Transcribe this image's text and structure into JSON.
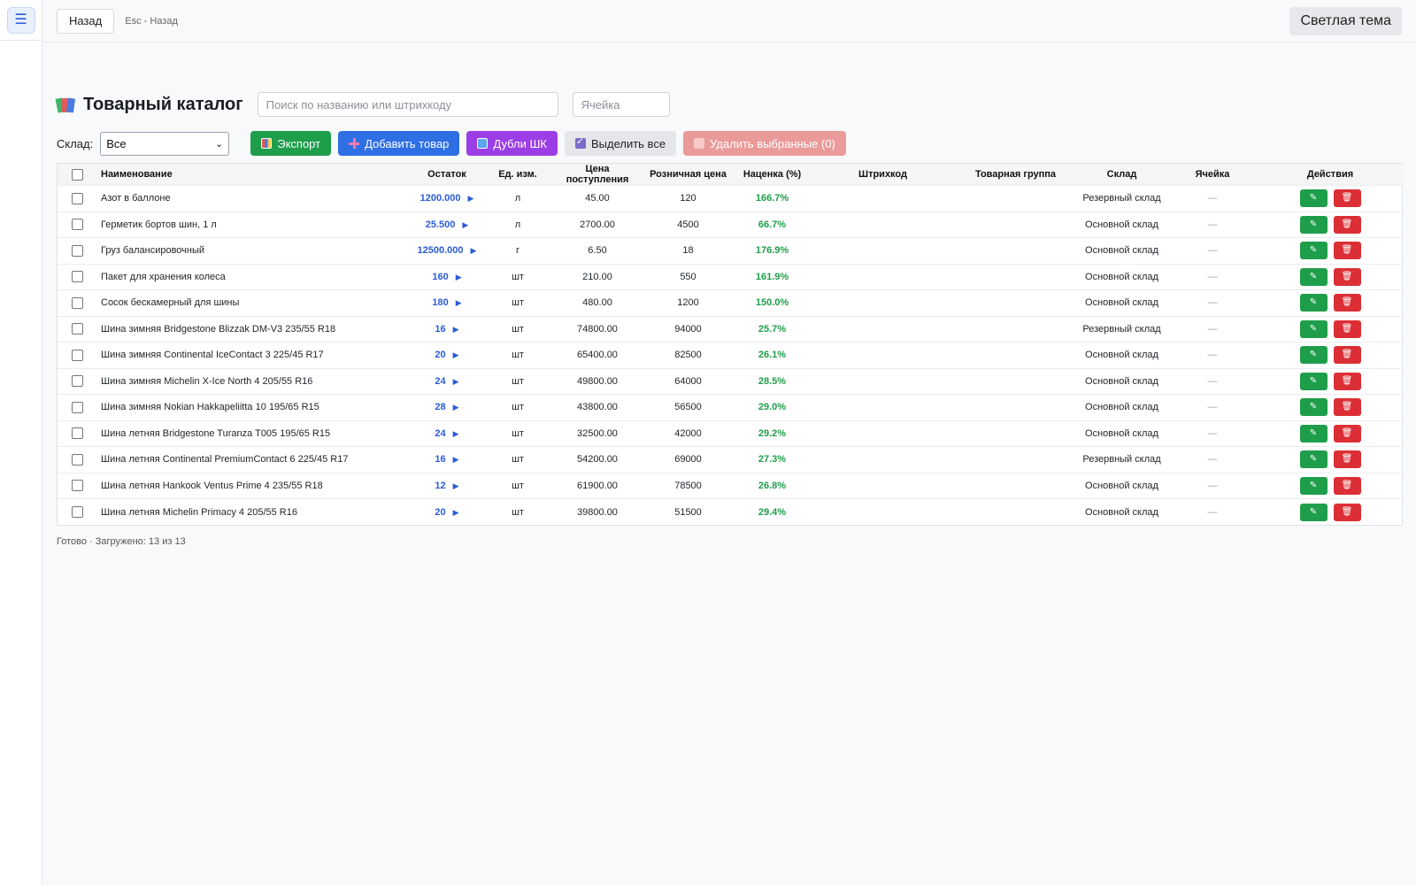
{
  "sidebar": {
    "menu_icon": "☰"
  },
  "topbar": {
    "back_label": "Назад",
    "esc_hint": "Esc - Назад",
    "theme_label": "Светлая тема"
  },
  "header": {
    "title": "Товарный каталог",
    "search_placeholder": "Поиск по названию или штрихкоду",
    "cell_placeholder": "Ячейка"
  },
  "toolbar": {
    "warehouse_label": "Склад:",
    "warehouse_value": "Все",
    "export_label": "Экспорт",
    "add_label": "Добавить товар",
    "duplicates_label": "Дубли ШК",
    "select_all_label": "Выделить все",
    "delete_selected_label": "Удалить выбранные (0)"
  },
  "table": {
    "columns": [
      "Наименование",
      "Остаток",
      "Ед. изм.",
      "Цена поступления",
      "Розничная цена",
      "Наценка (%)",
      "Штрихкод",
      "Товарная группа",
      "Склад",
      "Ячейка",
      "Действия"
    ],
    "rows": [
      {
        "name": "Азот в баллоне",
        "stock": "1200.000",
        "unit": "л",
        "cost": "45.00",
        "retail": "120",
        "markup": "166.7%",
        "barcode": "",
        "group": "",
        "warehouse": "Резервный склад",
        "cell": "—"
      },
      {
        "name": "Герметик бортов шин, 1 л",
        "stock": "25.500",
        "unit": "л",
        "cost": "2700.00",
        "retail": "4500",
        "markup": "66.7%",
        "barcode": "",
        "group": "",
        "warehouse": "Основной склад",
        "cell": "—"
      },
      {
        "name": "Груз балансировочный",
        "stock": "12500.000",
        "unit": "г",
        "cost": "6.50",
        "retail": "18",
        "markup": "176.9%",
        "barcode": "",
        "group": "",
        "warehouse": "Основной склад",
        "cell": "—"
      },
      {
        "name": "Пакет для хранения колеса",
        "stock": "160",
        "unit": "шт",
        "cost": "210.00",
        "retail": "550",
        "markup": "161.9%",
        "barcode": "",
        "group": "",
        "warehouse": "Основной склад",
        "cell": "—"
      },
      {
        "name": "Сосок бескамерный для шины",
        "stock": "180",
        "unit": "шт",
        "cost": "480.00",
        "retail": "1200",
        "markup": "150.0%",
        "barcode": "",
        "group": "",
        "warehouse": "Основной склад",
        "cell": "—"
      },
      {
        "name": "Шина зимняя Bridgestone Blizzak DM-V3 235/55 R18",
        "stock": "16",
        "unit": "шт",
        "cost": "74800.00",
        "retail": "94000",
        "markup": "25.7%",
        "barcode": "",
        "group": "",
        "warehouse": "Резервный склад",
        "cell": "—"
      },
      {
        "name": "Шина зимняя Continental IceContact 3 225/45 R17",
        "stock": "20",
        "unit": "шт",
        "cost": "65400.00",
        "retail": "82500",
        "markup": "26.1%",
        "barcode": "",
        "group": "",
        "warehouse": "Основной склад",
        "cell": "—"
      },
      {
        "name": "Шина зимняя Michelin X-Ice North 4 205/55 R16",
        "stock": "24",
        "unit": "шт",
        "cost": "49800.00",
        "retail": "64000",
        "markup": "28.5%",
        "barcode": "",
        "group": "",
        "warehouse": "Основной склад",
        "cell": "—"
      },
      {
        "name": "Шина зимняя Nokian Hakkapeliitta 10 195/65 R15",
        "stock": "28",
        "unit": "шт",
        "cost": "43800.00",
        "retail": "56500",
        "markup": "29.0%",
        "barcode": "",
        "group": "",
        "warehouse": "Основной склад",
        "cell": "—"
      },
      {
        "name": "Шина летняя Bridgestone Turanza T005 195/65 R15",
        "stock": "24",
        "unit": "шт",
        "cost": "32500.00",
        "retail": "42000",
        "markup": "29.2%",
        "barcode": "",
        "group": "",
        "warehouse": "Основной склад",
        "cell": "—"
      },
      {
        "name": "Шина летняя Continental PremiumContact 6 225/45 R17",
        "stock": "16",
        "unit": "шт",
        "cost": "54200.00",
        "retail": "69000",
        "markup": "27.3%",
        "barcode": "",
        "group": "",
        "warehouse": "Резервный склад",
        "cell": "—"
      },
      {
        "name": "Шина летняя Hankook Ventus Prime 4 235/55 R18",
        "stock": "12",
        "unit": "шт",
        "cost": "61900.00",
        "retail": "78500",
        "markup": "26.8%",
        "barcode": "",
        "group": "",
        "warehouse": "Основной склад",
        "cell": "—"
      },
      {
        "name": "Шина летняя Michelin Primacy 4 205/55 R16",
        "stock": "20",
        "unit": "шт",
        "cost": "39800.00",
        "retail": "51500",
        "markup": "29.4%",
        "barcode": "",
        "group": "",
        "warehouse": "Основной склад",
        "cell": "—"
      }
    ]
  },
  "status": "Готово · Загружено: 13 из 13",
  "colors": {
    "export": "#1e9e4a",
    "add": "#2f6fe4",
    "duplicates": "#9b3ee6",
    "delete_selected": "#eb9a9a",
    "stock_text": "#2a5bd7",
    "markup_text": "#1e9e4a",
    "edit_action": "#1e9e4a",
    "delete_action": "#dc2f35"
  },
  "icons": {
    "title": "books-icon",
    "export": "chart-icon",
    "add": "plus-icon",
    "duplicates": "repeat-icon",
    "select_all": "checkbox-icon",
    "delete_selected": "trash-icon",
    "stock_expand": "triangle-right-icon",
    "edit": "pencil-icon",
    "delete": "trash-icon"
  }
}
